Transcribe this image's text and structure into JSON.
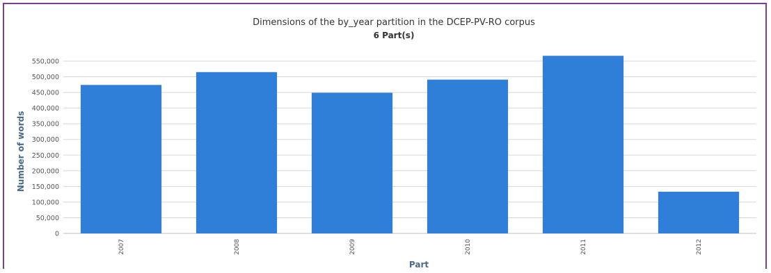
{
  "chart_data": {
    "type": "bar",
    "title": "Dimensions of the by_year partition in the DCEP-PV-RO corpus",
    "subtitle": "6 Part(s)",
    "xlabel": "Part",
    "ylabel": "Number of words",
    "categories": [
      "2007",
      "2008",
      "2009",
      "2010",
      "2011",
      "2012"
    ],
    "values": [
      474000,
      515000,
      449000,
      491000,
      567000,
      133000
    ],
    "ylim": [
      0,
      550000
    ],
    "yticks": [
      0,
      50000,
      100000,
      150000,
      200000,
      250000,
      300000,
      350000,
      400000,
      450000,
      500000,
      550000
    ],
    "ytick_labels": [
      "0",
      "50,000",
      "100,000",
      "150,000",
      "200,000",
      "250,000",
      "300,000",
      "350,000",
      "400,000",
      "450,000",
      "500,000",
      "550,000"
    ],
    "grid": true,
    "bar_color": "#2f7ed8"
  }
}
